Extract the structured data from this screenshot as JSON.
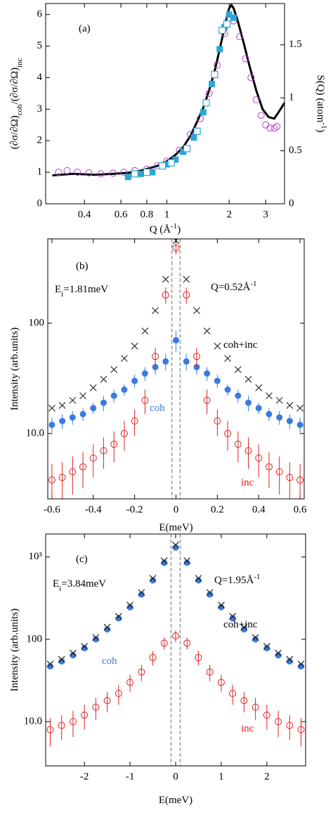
{
  "chart_data": [
    {
      "type": "scatter",
      "annotations": [
        {
          "parts": [
            {
              "text": "(a)"
            }
          ]
        }
      ],
      "xlabel": [
        {
          "text": "Q (Å"
        },
        {
          "text": "-1",
          "sup": true
        },
        {
          "text": ")"
        }
      ],
      "ylabel": [
        {
          "text": "(∂σ/∂Ω)"
        },
        {
          "text": "coh",
          "sub": true
        },
        {
          "text": "/(∂σ/∂Ω)"
        },
        {
          "text": "inc",
          "sub": true
        }
      ],
      "y2label": [
        {
          "text": "S(Q) (atom"
        },
        {
          "text": "-1",
          "sup": true
        },
        {
          "text": ")"
        }
      ],
      "xscale": "log",
      "xlim": [
        0.26,
        3.7
      ],
      "xticks": [
        0.4,
        0.6,
        0.8,
        1,
        2,
        3
      ],
      "ylim": [
        0,
        6.35
      ],
      "yticks": [
        0,
        1,
        2,
        3,
        4,
        5,
        6
      ],
      "y2lim": [
        0,
        1.89
      ],
      "y2ticks": [
        0,
        0.5,
        1,
        1.5
      ],
      "series": [
        {
          "marker": "line",
          "color": "#000000",
          "x": [
            0.28,
            0.35,
            0.45,
            0.55,
            0.65,
            0.75,
            0.9,
            1.0,
            1.1,
            1.2,
            1.3,
            1.4,
            1.5,
            1.6,
            1.7,
            1.8,
            1.9,
            1.95,
            2.0,
            2.05,
            2.1,
            2.2,
            2.35,
            2.5,
            2.7,
            2.9,
            3.1,
            3.3,
            3.5,
            3.7
          ],
          "values": [
            0.9,
            0.95,
            0.92,
            0.95,
            0.98,
            1.05,
            1.2,
            1.35,
            1.55,
            1.8,
            2.15,
            2.6,
            3.05,
            3.6,
            4.2,
            4.9,
            5.6,
            5.95,
            6.2,
            6.3,
            6.2,
            5.8,
            5.1,
            4.4,
            3.6,
            3.0,
            2.75,
            2.7,
            2.95,
            3.2
          ]
        },
        {
          "marker": "circle-open",
          "color": "#b040c8",
          "x": [
            0.3,
            0.33,
            0.37,
            0.42,
            0.48,
            0.55,
            0.62,
            0.7,
            0.8,
            0.9,
            1.0,
            1.15,
            1.3,
            1.45,
            1.6,
            1.75,
            1.9,
            2.0,
            2.1,
            2.25,
            2.4,
            2.55,
            2.7,
            2.85,
            3.0,
            3.15,
            3.3,
            3.4
          ],
          "values": [
            1.0,
            1.05,
            1.0,
            0.98,
            0.95,
            0.97,
            1.0,
            1.05,
            1.1,
            1.2,
            1.35,
            1.7,
            2.2,
            2.7,
            3.5,
            4.4,
            5.4,
            5.9,
            5.8,
            5.3,
            4.6,
            4.0,
            3.3,
            2.8,
            2.5,
            2.4,
            2.4,
            2.45
          ]
        },
        {
          "marker": "square-filled",
          "color": "#2aa7d8",
          "x": [
            0.65,
            0.75,
            0.85,
            1.0,
            1.1,
            1.2,
            1.35,
            1.5,
            1.65,
            1.8,
            1.9,
            2.0,
            2.1
          ],
          "values": [
            0.85,
            0.95,
            1.0,
            1.25,
            1.4,
            1.65,
            2.1,
            2.9,
            3.8,
            4.9,
            5.6,
            6.0,
            5.9
          ]
        },
        {
          "marker": "square-open",
          "color": "#2aa7d8",
          "x": [
            0.7,
            0.8,
            0.95,
            1.05,
            1.25,
            1.4,
            1.55,
            1.7,
            1.85,
            1.95
          ],
          "values": [
            0.95,
            1.0,
            1.2,
            1.3,
            1.75,
            2.3,
            3.2,
            4.1,
            5.5,
            5.7
          ]
        }
      ]
    },
    {
      "type": "scatter",
      "annotations": [
        {
          "parts": [
            {
              "text": "(b)"
            }
          ]
        },
        {
          "parts": [
            {
              "text": "E"
            },
            {
              "text": "i",
              "sub": true
            },
            {
              "text": "=1.81meV"
            }
          ]
        },
        {
          "parts": [
            {
              "text": "Q=0.52Å"
            },
            {
              "text": "-1",
              "sup": true
            }
          ]
        },
        {
          "parts": [
            {
              "text": "coh+inc"
            }
          ],
          "color": "#000000"
        },
        {
          "parts": [
            {
              "text": "coh"
            }
          ],
          "color": "#3a7be0"
        },
        {
          "parts": [
            {
              "text": "inc"
            }
          ],
          "color": "#e02020"
        }
      ],
      "xlabel": [
        {
          "text": "E(meV)"
        }
      ],
      "ylabel": [
        {
          "text": "Intensity (arb.units)"
        }
      ],
      "yscale": "log",
      "xlim": [
        -0.62,
        0.62
      ],
      "xticks": [
        -0.6,
        -0.4,
        -0.2,
        0,
        0.2,
        0.4,
        0.6
      ],
      "ylim": [
        2.56,
        580
      ],
      "yticks": [
        {
          "value": 10,
          "label": "10.0"
        },
        100
      ],
      "vlines": [
        -0.02,
        0.02
      ],
      "vline_color": "#999999",
      "series": [
        {
          "marker": "x",
          "color": "#333333",
          "x": [
            -0.6,
            -0.55,
            -0.5,
            -0.45,
            -0.4,
            -0.35,
            -0.3,
            -0.25,
            -0.2,
            -0.15,
            -0.1,
            -0.05,
            0,
            0.05,
            0.1,
            0.15,
            0.2,
            0.25,
            0.3,
            0.35,
            0.4,
            0.45,
            0.5,
            0.55,
            0.6
          ],
          "values": [
            17,
            18,
            20,
            22,
            26,
            31,
            38,
            48,
            62,
            85,
            130,
            250,
            560,
            250,
            130,
            85,
            62,
            48,
            38,
            31,
            26,
            22,
            20,
            18,
            17
          ]
        },
        {
          "marker": "circle-filled",
          "color": "#3a7be0",
          "x": [
            -0.6,
            -0.55,
            -0.5,
            -0.45,
            -0.4,
            -0.35,
            -0.3,
            -0.25,
            -0.2,
            -0.15,
            -0.1,
            -0.05,
            0,
            0.05,
            0.1,
            0.15,
            0.2,
            0.25,
            0.3,
            0.35,
            0.4,
            0.45,
            0.5,
            0.55,
            0.6
          ],
          "values": [
            12,
            13,
            14,
            15,
            17,
            19,
            22,
            25,
            30,
            35,
            40,
            45,
            70,
            45,
            40,
            35,
            30,
            25,
            22,
            19,
            17,
            15,
            14,
            13,
            12
          ],
          "errors": [
            2,
            2,
            2,
            2,
            2,
            3,
            3,
            3,
            4,
            5,
            6,
            8,
            15,
            8,
            6,
            5,
            4,
            3,
            3,
            3,
            2,
            2,
            2,
            2,
            2
          ]
        },
        {
          "marker": "circle-open",
          "color": "#e02020",
          "x": [
            -0.6,
            -0.55,
            -0.5,
            -0.45,
            -0.4,
            -0.35,
            -0.3,
            -0.25,
            -0.2,
            -0.15,
            -0.1,
            -0.05,
            0,
            0.05,
            0.1,
            0.15,
            0.2,
            0.25,
            0.3,
            0.35,
            0.4,
            0.45,
            0.5,
            0.55,
            0.6
          ],
          "values": [
            3.8,
            4,
            4.5,
            5,
            6,
            7,
            8,
            10,
            13,
            20,
            50,
            180,
            480,
            180,
            50,
            20,
            13,
            10,
            8,
            7,
            6,
            5,
            4.5,
            4,
            3.8
          ],
          "errors": [
            1.5,
            1.5,
            1.7,
            1.8,
            2,
            2.2,
            2.5,
            3,
            3.5,
            5,
            10,
            30,
            60,
            30,
            10,
            5,
            3.5,
            3,
            2.5,
            2.2,
            2,
            1.8,
            1.7,
            1.5,
            1.5
          ]
        }
      ]
    },
    {
      "type": "scatter",
      "annotations": [
        {
          "parts": [
            {
              "text": "(c)"
            }
          ]
        },
        {
          "parts": [
            {
              "text": "E"
            },
            {
              "text": "i",
              "sub": true
            },
            {
              "text": "=3.84meV"
            }
          ]
        },
        {
          "parts": [
            {
              "text": "Q=1.95Å"
            },
            {
              "text": "-1",
              "sup": true
            }
          ]
        },
        {
          "parts": [
            {
              "text": "coh+inc"
            }
          ],
          "color": "#000000"
        },
        {
          "parts": [
            {
              "text": "coh"
            }
          ],
          "color": "#3a7be0"
        },
        {
          "parts": [
            {
              "text": "inc"
            }
          ],
          "color": "#e02020"
        }
      ],
      "xlabel": [
        {
          "text": "E(meV)"
        }
      ],
      "ylabel": [
        {
          "text": "Intensity (arb.units)"
        }
      ],
      "yscale": "log",
      "xlim": [
        -2.85,
        2.85
      ],
      "xticks": [
        -2,
        -1,
        0,
        1,
        2
      ],
      "ylim": [
        2.9,
        1900
      ],
      "yticks": [
        {
          "value": 10,
          "label": "10.0"
        },
        100,
        {
          "value": 1000,
          "label": "10³"
        }
      ],
      "vlines": [
        -0.1,
        0.1
      ],
      "vline_color": "#999999",
      "series": [
        {
          "marker": "circle-filled",
          "color": "#3a7be0",
          "x": [
            -2.75,
            -2.5,
            -2.25,
            -2,
            -1.75,
            -1.5,
            -1.25,
            -1,
            -0.75,
            -0.5,
            -0.25,
            0,
            0.25,
            0.5,
            0.75,
            1,
            1.25,
            1.5,
            1.75,
            2,
            2.25,
            2.5,
            2.75
          ],
          "values": [
            47,
            54,
            64,
            78,
            100,
            132,
            180,
            245,
            350,
            520,
            850,
            1300,
            850,
            520,
            350,
            245,
            180,
            132,
            100,
            78,
            64,
            54,
            47
          ]
        },
        {
          "marker": "x",
          "color": "#222222",
          "x": [
            -2.75,
            -2.5,
            -2.25,
            -2,
            -1.75,
            -1.5,
            -1.25,
            -1,
            -0.75,
            -0.5,
            -0.25,
            0,
            0.25,
            0.5,
            0.75,
            1,
            1.25,
            1.5,
            1.75,
            2,
            2.25,
            2.5,
            2.75
          ],
          "values": [
            50,
            57,
            68,
            82,
            105,
            140,
            190,
            260,
            370,
            550,
            900,
            1400,
            900,
            550,
            370,
            260,
            190,
            140,
            105,
            82,
            68,
            57,
            50
          ]
        },
        {
          "marker": "circle-open",
          "color": "#e02020",
          "x": [
            -2.75,
            -2.5,
            -2.25,
            -2,
            -1.75,
            -1.5,
            -1.25,
            -1,
            -0.75,
            -0.5,
            -0.25,
            0,
            0.25,
            0.5,
            0.75,
            1,
            1.25,
            1.5,
            1.75,
            2,
            2.25,
            2.5,
            2.75
          ],
          "values": [
            8,
            9,
            10,
            12,
            15,
            18,
            22,
            30,
            40,
            60,
            90,
            110,
            90,
            60,
            40,
            30,
            22,
            18,
            15,
            12,
            10,
            9,
            8
          ],
          "errors": [
            3,
            3,
            3.5,
            4,
            4.5,
            5,
            6,
            7,
            9,
            12,
            15,
            18,
            15,
            12,
            9,
            7,
            6,
            5,
            4.5,
            4,
            3.5,
            3,
            3
          ]
        }
      ]
    }
  ]
}
